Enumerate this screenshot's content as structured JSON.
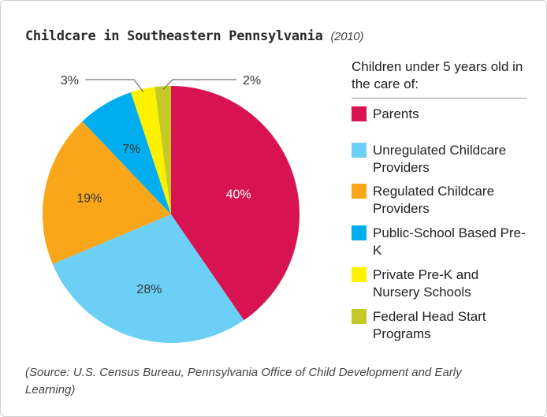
{
  "title": "Childcare in Southeastern Pennsylvania",
  "title_year": "(2010)",
  "legend_heading": "Children under 5 years old in the care of:",
  "source": "(Source: U.S. Census Bureau, Pennsylvania Office of Child Development and Early Learning)",
  "chart_data": {
    "type": "pie",
    "title": "Childcare in Southeastern Pennsylvania (2010)",
    "slices": [
      {
        "label": "Parents",
        "value": 40,
        "display": "40%",
        "color": "#d81351",
        "label_color": "#ffffff"
      },
      {
        "label": "Unregulated Childcare Providers",
        "value": 28,
        "display": "28%",
        "color": "#6ccff6",
        "label_color": "#333333"
      },
      {
        "label": "Regulated Childcare Providers",
        "value": 19,
        "display": "19%",
        "color": "#faa61a",
        "label_color": "#333333"
      },
      {
        "label": "Public-School Based Pre-K",
        "value": 7,
        "display": "7%",
        "color": "#00aeef",
        "label_color": "#333333"
      },
      {
        "label": "Private Pre-K and Nursery Schools",
        "value": 3,
        "display": "3%",
        "color": "#fff200",
        "label_color": "#333333"
      },
      {
        "label": "Federal Head Start Programs",
        "value": 2,
        "display": "2%",
        "color": "#c4c926",
        "label_color": "#333333"
      }
    ],
    "start": "12 o'clock, clockwise",
    "legend_position": "right"
  }
}
